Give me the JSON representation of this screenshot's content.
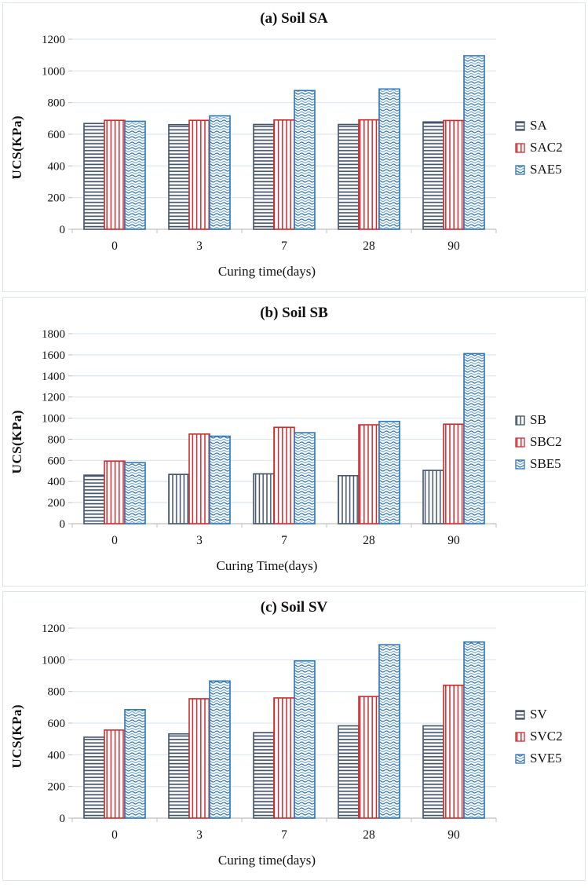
{
  "colors": {
    "navy": "#44546A",
    "red": "#CE2B2F",
    "blue": "#2E75B6",
    "blue_light": "#74A9D8",
    "grid": "#dce6f1",
    "axis": "#bfbfbf",
    "text": "#111111"
  },
  "chart_data": [
    {
      "type": "bar",
      "title": "(a) Soil SA",
      "xlabel": "Curing time(days)",
      "ylabel": "UCS(KPa)",
      "categories": [
        "0",
        "3",
        "7",
        "28",
        "90"
      ],
      "ylim": [
        0,
        1200
      ],
      "ytick_step": 200,
      "grid": true,
      "legend_position": "right",
      "series": [
        {
          "name": "SA",
          "pattern": "h-navy",
          "color": "#44546A",
          "values": [
            668,
            661,
            662,
            662,
            678
          ]
        },
        {
          "name": "SAC2",
          "pattern": "v-red",
          "color": "#CE2B2F",
          "values": [
            688,
            688,
            690,
            691,
            687
          ]
        },
        {
          "name": "SAE5",
          "pattern": "wave-blue",
          "color": "#2E75B6",
          "values": [
            682,
            716,
            876,
            886,
            1096
          ]
        }
      ]
    },
    {
      "type": "bar",
      "title": "(b) Soil SB",
      "xlabel": "Curing Time(days)",
      "ylabel": "UCS(KPa)",
      "categories": [
        "0",
        "3",
        "7",
        "28",
        "90"
      ],
      "ylim": [
        0,
        1800
      ],
      "ytick_step": 200,
      "grid": true,
      "legend_position": "right",
      "series": [
        {
          "name": "SB",
          "pattern": "v-navy",
          "color": "#44546A",
          "values": [
            460,
            467,
            472,
            455,
            505
          ],
          "per_bar_patterns": [
            "h-navy",
            "v-navy",
            "v-navy",
            "v-navy",
            "v-navy"
          ]
        },
        {
          "name": "SBC2",
          "pattern": "v-red",
          "color": "#CE2B2F",
          "values": [
            593,
            849,
            913,
            937,
            943
          ]
        },
        {
          "name": "SBE5",
          "pattern": "wave-blue",
          "color": "#2E75B6",
          "values": [
            578,
            829,
            862,
            969,
            1611
          ]
        }
      ]
    },
    {
      "type": "bar",
      "title": "(c) Soil SV",
      "xlabel": "Curing time(days)",
      "ylabel": "UCS(KPa)",
      "categories": [
        "0",
        "3",
        "7",
        "28",
        "90"
      ],
      "ylim": [
        0,
        1200
      ],
      "ytick_step": 200,
      "grid": true,
      "legend_position": "right",
      "series": [
        {
          "name": "SV",
          "pattern": "h-navy",
          "color": "#44546A",
          "values": [
            511,
            532,
            540,
            583,
            583
          ]
        },
        {
          "name": "SVC2",
          "pattern": "v-red",
          "color": "#CE2B2F",
          "values": [
            556,
            754,
            759,
            768,
            839
          ]
        },
        {
          "name": "SVE5",
          "pattern": "wave-blue",
          "color": "#2E75B6",
          "values": [
            685,
            866,
            993,
            1095,
            1112
          ]
        }
      ]
    }
  ]
}
